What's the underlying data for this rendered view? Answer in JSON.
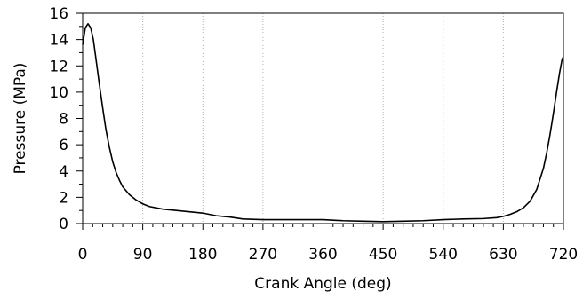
{
  "chart_data": {
    "type": "line",
    "title": "",
    "xlabel": "Crank Angle (deg)",
    "ylabel": "Pressure (MPa)",
    "xlim": [
      0,
      720
    ],
    "ylim": [
      0,
      16
    ],
    "xticks": [
      0,
      90,
      180,
      270,
      360,
      450,
      540,
      630,
      720
    ],
    "yticks": [
      0,
      2,
      4,
      6,
      8,
      10,
      12,
      14,
      16
    ],
    "x_grid": "dotted vertical lines at each x tick",
    "y_grid": false,
    "legend": "none",
    "colors": {
      "line": "#000000",
      "grid": "#b0b0b0",
      "axes": "#000000",
      "background": "#ffffff"
    },
    "series": [
      {
        "x": [
          0,
          4,
          8,
          12,
          16,
          20,
          25,
          30,
          35,
          40,
          45,
          50,
          55,
          60,
          70,
          80,
          90,
          100,
          120,
          140,
          160,
          180,
          200,
          220,
          240,
          270,
          300,
          330,
          360,
          390,
          420,
          450,
          480,
          510,
          540,
          570,
          600,
          620,
          630,
          640,
          650,
          660,
          670,
          680,
          690,
          695,
          700,
          705,
          710,
          714,
          718,
          720
        ],
        "y": [
          13.6,
          14.9,
          15.2,
          14.9,
          14.0,
          12.5,
          10.6,
          8.8,
          7.1,
          5.8,
          4.7,
          3.9,
          3.3,
          2.8,
          2.2,
          1.8,
          1.5,
          1.3,
          1.1,
          1.0,
          0.9,
          0.8,
          0.6,
          0.5,
          0.35,
          0.3,
          0.3,
          0.3,
          0.3,
          0.22,
          0.18,
          0.15,
          0.18,
          0.22,
          0.3,
          0.35,
          0.38,
          0.45,
          0.55,
          0.7,
          0.9,
          1.2,
          1.7,
          2.6,
          4.2,
          5.4,
          6.8,
          8.4,
          10.1,
          11.4,
          12.5,
          12.7
        ]
      }
    ]
  }
}
